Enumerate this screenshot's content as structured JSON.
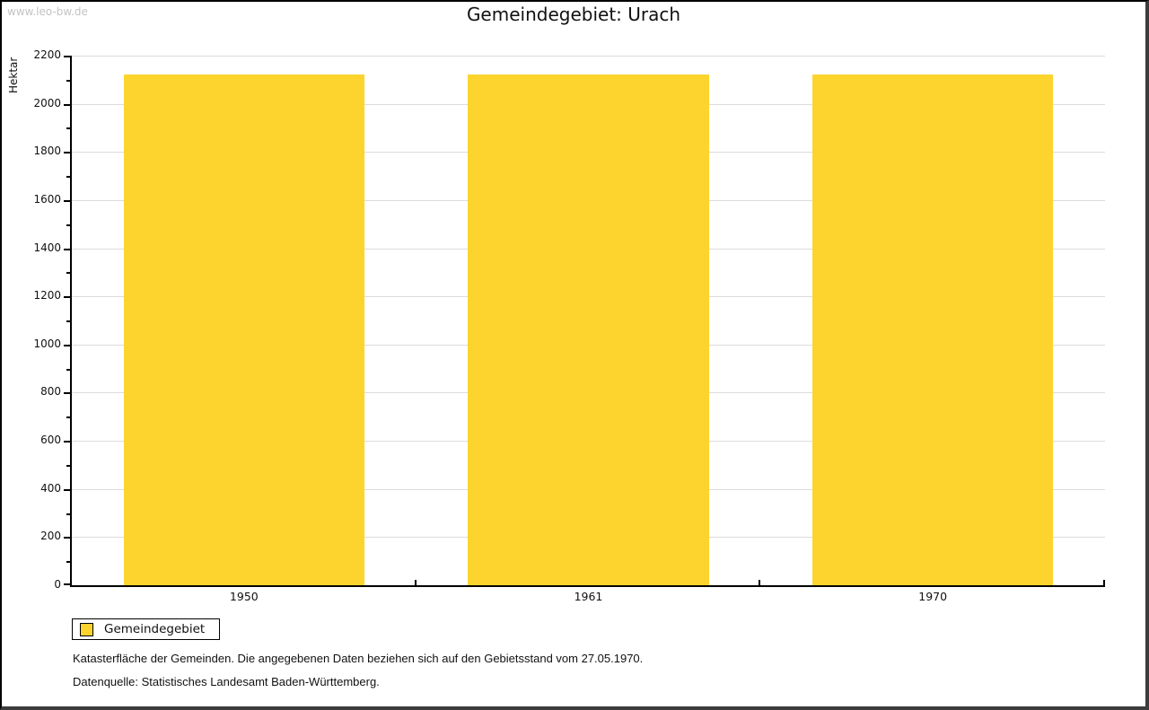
{
  "watermark": "www.leo-bw.de",
  "title": "Gemeindegebiet: Urach",
  "chart_data": {
    "type": "bar",
    "title": "Gemeindegebiet: Urach",
    "categories": [
      "1950",
      "1961",
      "1970"
    ],
    "series": [
      {
        "name": "Gemeindegebiet",
        "values": [
          2120,
          2120,
          2120
        ]
      }
    ],
    "xlabel": "",
    "ylabel": "Hektar",
    "ylim": [
      0,
      2200
    ],
    "ytick_step": 200,
    "minor_tick_step": 100,
    "bar_color": "#FCD42D",
    "gridline_color": "#DCDCDC",
    "grid": "horizontal-major",
    "legend_position": "bottom-left",
    "bar_width_fraction": 0.7
  },
  "legend": {
    "items": [
      {
        "label": "Gemeindegebiet",
        "color": "#FCD42D"
      }
    ]
  },
  "footer": {
    "line1": "Katasterfläche der Gemeinden. Die angegebenen Daten beziehen sich auf den Gebietsstand vom 27.05.1970.",
    "line2": "Datenquelle: Statistisches Landesamt Baden-Württemberg."
  }
}
